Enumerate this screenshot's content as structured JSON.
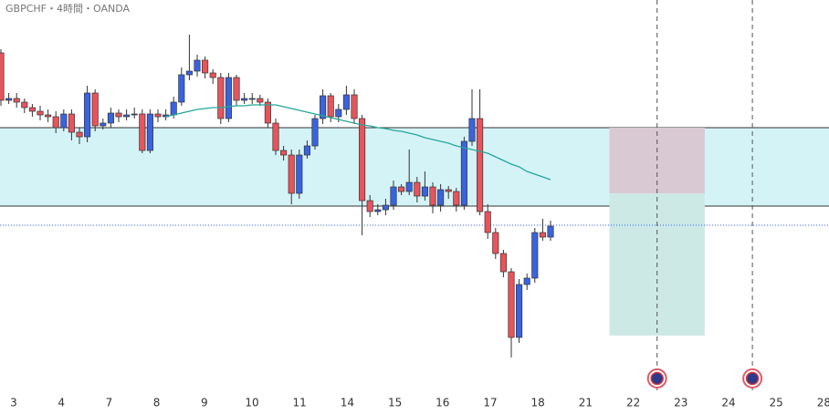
{
  "chart_data": {
    "type": "candlestick",
    "title": "GBPCHF・4時間・OANDA",
    "ylim": [
      0,
      454
    ],
    "xlim": [
      -0.3,
      17.1
    ],
    "xticks": [
      {
        "value": 0,
        "label": "3"
      },
      {
        "value": 1,
        "label": "4"
      },
      {
        "value": 2,
        "label": "7"
      },
      {
        "value": 3,
        "label": "8"
      },
      {
        "value": 4,
        "label": "9"
      },
      {
        "value": 5,
        "label": "10"
      },
      {
        "value": 6,
        "label": "11"
      },
      {
        "value": 7,
        "label": "14"
      },
      {
        "value": 8,
        "label": "15"
      },
      {
        "value": 9,
        "label": "16"
      },
      {
        "value": 10,
        "label": "17"
      },
      {
        "value": 11,
        "label": "18"
      },
      {
        "value": 12,
        "label": "21"
      },
      {
        "value": 13,
        "label": "22"
      },
      {
        "value": 14,
        "label": "23"
      },
      {
        "value": 15,
        "label": "24"
      },
      {
        "value": 16,
        "label": "25"
      },
      {
        "value": 17,
        "label": "28"
      }
    ],
    "up_color": "#3a63e0",
    "down_color": "#e8545c",
    "open": [
      396,
      344,
      346,
      342,
      336,
      332,
      328,
      326,
      314,
      329,
      309,
      304,
      352,
      316,
      319,
      330,
      326,
      328,
      329,
      289,
      329,
      326,
      328,
      342,
      372,
      376,
      388,
      374,
      369,
      324,
      369,
      344,
      346,
      346,
      342,
      319,
      289,
      284,
      242,
      284,
      294,
      324,
      349,
      326,
      334,
      350,
      324,
      234,
      222,
      224,
      229,
      249,
      244,
      254,
      239,
      249,
      229,
      246,
      244,
      229,
      299,
      324,
      222,
      199,
      176,
      156,
      84,
      142,
      149,
      199,
      194
    ],
    "high": [
      400,
      352,
      352,
      346,
      340,
      338,
      334,
      332,
      334,
      334,
      314,
      360,
      356,
      324,
      336,
      334,
      334,
      336,
      334,
      334,
      334,
      334,
      348,
      380,
      416,
      394,
      392,
      378,
      374,
      374,
      372,
      352,
      352,
      350,
      346,
      324,
      294,
      290,
      290,
      300,
      328,
      356,
      352,
      340,
      360,
      356,
      328,
      240,
      230,
      236,
      256,
      252,
      290,
      260,
      266,
      254,
      252,
      250,
      248,
      304,
      356,
      356,
      230,
      204,
      180,
      160,
      148,
      154,
      204,
      214,
      212
    ],
    "low": [
      338,
      340,
      336,
      330,
      326,
      322,
      320,
      308,
      310,
      300,
      296,
      298,
      310,
      312,
      314,
      320,
      322,
      324,
      286,
      286,
      320,
      322,
      324,
      338,
      366,
      370,
      368,
      362,
      318,
      320,
      338,
      340,
      340,
      338,
      314,
      284,
      278,
      230,
      236,
      280,
      290,
      318,
      320,
      320,
      328,
      318,
      196,
      216,
      218,
      218,
      224,
      240,
      240,
      232,
      234,
      220,
      222,
      236,
      222,
      224,
      294,
      218,
      192,
      170,
      150,
      62,
      78,
      136,
      144,
      190,
      190
    ],
    "close": [
      344,
      346,
      342,
      336,
      332,
      328,
      326,
      314,
      329,
      309,
      304,
      352,
      316,
      319,
      330,
      326,
      328,
      329,
      289,
      329,
      326,
      328,
      342,
      372,
      376,
      388,
      374,
      369,
      324,
      369,
      344,
      346,
      346,
      342,
      319,
      289,
      284,
      242,
      284,
      294,
      324,
      349,
      326,
      334,
      350,
      324,
      234,
      222,
      224,
      229,
      249,
      244,
      254,
      239,
      249,
      229,
      246,
      244,
      229,
      299,
      324,
      222,
      199,
      176,
      156,
      84,
      142,
      149,
      199,
      194,
      206
    ],
    "series": [
      {
        "color": "#26a69a",
        "values": [
          null,
          null,
          null,
          null,
          null,
          null,
          null,
          null,
          null,
          null,
          null,
          null,
          null,
          null,
          null,
          null,
          null,
          null,
          null,
          null,
          null,
          326,
          328,
          330,
          332,
          334,
          335,
          336,
          336,
          337,
          338,
          338,
          339,
          339,
          339,
          339,
          337,
          335,
          333,
          331,
          329,
          327,
          325,
          323,
          321,
          319,
          317,
          316,
          314,
          313,
          311,
          310,
          308,
          306,
          303,
          301,
          299,
          297,
          294,
          292,
          290,
          288,
          286,
          282,
          278,
          274,
          271,
          266,
          263,
          260,
          257
        ]
      }
    ],
    "zone": {
      "top": 314,
      "bottom": 228,
      "fill": "#d4f3f7"
    },
    "price_line": {
      "value": 207,
      "color": "#2962ff"
    },
    "position": {
      "start": 12.5,
      "end": 14.5,
      "entry": 242,
      "stop": 314,
      "target": 86,
      "stop_color": "#d9c9d3",
      "target_color": "#cde9e6"
    },
    "vlines": [
      13.5,
      15.5
    ]
  }
}
